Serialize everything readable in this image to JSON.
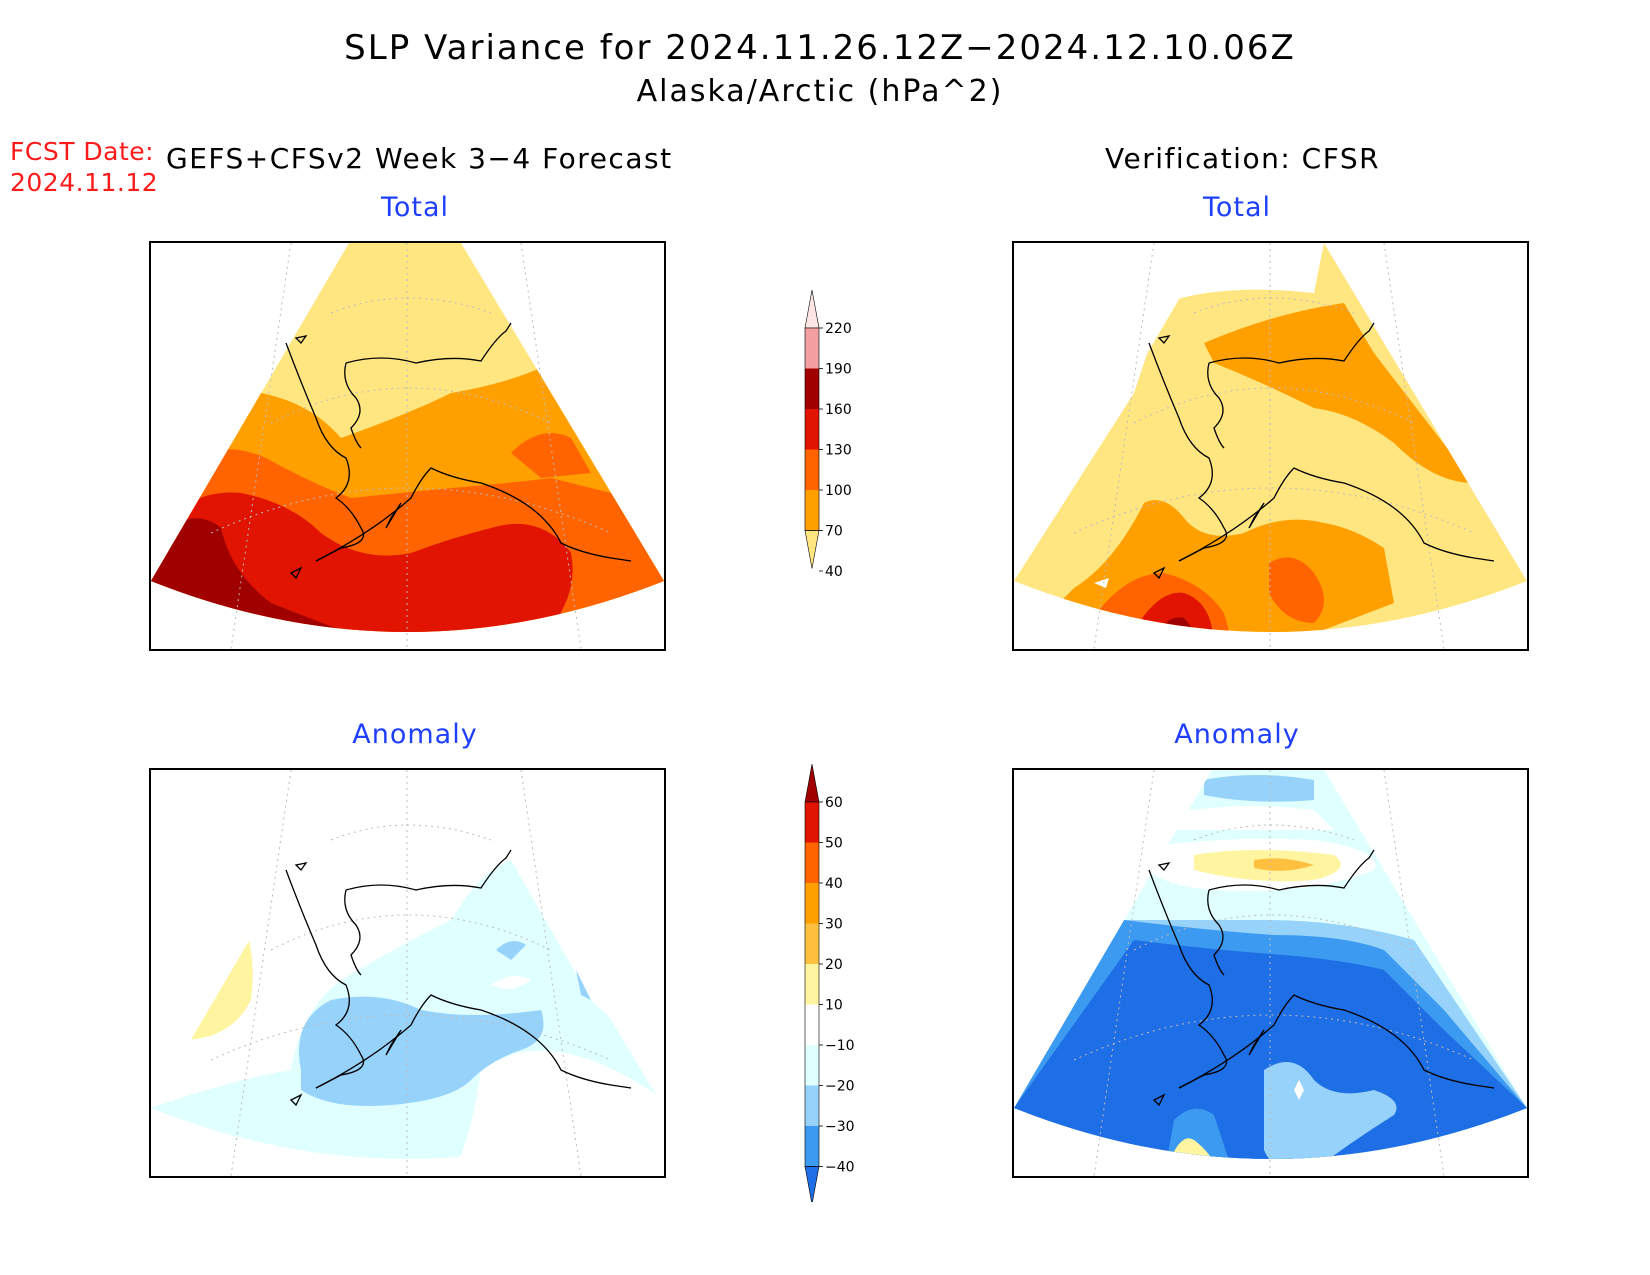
{
  "title": {
    "line1": "SLP Variance for 2024.11.26.12Z−2024.12.10.06Z",
    "line2": "Alaska/Arctic (hPa^2)"
  },
  "forecast_date": {
    "label": "FCST Date:",
    "value": "2024.11.12"
  },
  "left_header": "GEFS+CFSv2 Week 3−4 Forecast",
  "right_header": "Verification: CFSR",
  "panels": {
    "forecast_total": {
      "title": "Total"
    },
    "verification_total": {
      "title": "Total"
    },
    "forecast_anomaly": {
      "title": "Anomaly"
    },
    "verification_anomaly": {
      "title": "Anomaly"
    }
  },
  "colorbar_total": {
    "labels": [
      "220",
      "190",
      "160",
      "130",
      "100",
      "70",
      "40"
    ],
    "colors": [
      "#ffe6e6",
      "#f4a0a0",
      "#a00000",
      "#e01400",
      "#ff6400",
      "#ffa000",
      "#ffe680"
    ]
  },
  "colorbar_anomaly": {
    "labels": [
      "60",
      "50",
      "40",
      "30",
      "20",
      "10",
      "−10",
      "−20",
      "−30",
      "−40"
    ],
    "colors": [
      "#a00000",
      "#e01400",
      "#ff6400",
      "#ffa000",
      "#ffc040",
      "#fff5a0",
      "#ffffff",
      "#e0ffff",
      "#96d2fa",
      "#3c9bf0",
      "#1e6ee6"
    ]
  },
  "palette": {
    "total": {
      "40-70": "#ffe680",
      "70-100": "#ffa000",
      "100-130": "#ff6400",
      "130-160": "#e01400",
      "160-190": "#a00000"
    },
    "anomaly": {
      "-40": "#1e6ee6",
      "-30": "#3c9bf0",
      "-20": "#96d2fa",
      "-10": "#e0ffff",
      "10-20": "#fff5a0",
      "20-30": "#ffc040"
    }
  }
}
